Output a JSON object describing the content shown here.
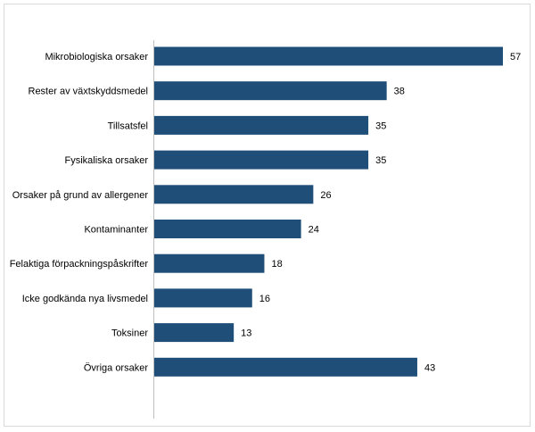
{
  "chart_data": {
    "type": "bar",
    "orientation": "horizontal",
    "title": "",
    "xlabel": "",
    "ylabel": "",
    "xlim": [
      0,
      57
    ],
    "grid": false,
    "legend": "none",
    "bar_color": "#1f4e79",
    "categories": [
      "Mikrobiologiska orsaker",
      "Rester av växtskyddsmedel",
      "Tillsatsfel",
      "Fysikaliska orsaker",
      "Orsaker på grund av allergener",
      "Kontaminanter",
      "Felaktiga förpackningspåskrifter",
      "Icke godkända nya livsmedel",
      "Toksiner",
      "Övriga orsaker"
    ],
    "values": [
      57,
      38,
      35,
      35,
      26,
      24,
      18,
      16,
      13,
      43
    ]
  }
}
